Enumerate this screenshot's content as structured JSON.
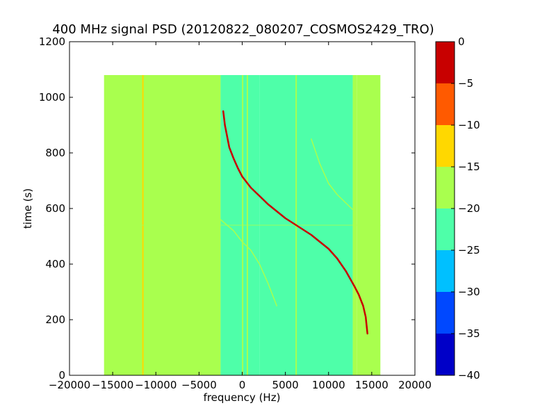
{
  "chart_data": {
    "type": "heatmap",
    "title": "400 MHz signal PSD (20120822_080207_COSMOS2429_TRO)",
    "xlabel": "frequency (Hz)",
    "ylabel": "time (s)",
    "xlim": [
      -20000,
      20000
    ],
    "ylim": [
      0,
      1200
    ],
    "xticks": [
      -20000,
      -15000,
      -10000,
      -5000,
      0,
      5000,
      10000,
      15000,
      20000
    ],
    "yticks": [
      0,
      200,
      400,
      600,
      800,
      1000,
      1200
    ],
    "data_extent": {
      "x": [
        -16000,
        16000
      ],
      "y": [
        0,
        1080
      ]
    },
    "colorbar": {
      "min": -40,
      "max": 0,
      "ticks": [
        0,
        -5,
        -10,
        -15,
        -20,
        -25,
        -30,
        -35,
        -40
      ],
      "levels": [
        {
          "from": -40,
          "to": -35,
          "color": "#0000c8"
        },
        {
          "from": -35,
          "to": -30,
          "color": "#0048ff"
        },
        {
          "from": -30,
          "to": -25,
          "color": "#00c0ff"
        },
        {
          "from": -25,
          "to": -20,
          "color": "#4effa9"
        },
        {
          "from": -20,
          "to": -15,
          "color": "#a9ff4e"
        },
        {
          "from": -15,
          "to": -10,
          "color": "#ffd800"
        },
        {
          "from": -10,
          "to": -5,
          "color": "#ff5a00"
        },
        {
          "from": -5,
          "to": 0,
          "color": "#c80000"
        }
      ]
    },
    "background_regions": [
      {
        "x": [
          -16000,
          -11500
        ],
        "level": -17.5
      },
      {
        "x": [
          -11500,
          -2500
        ],
        "level": -20
      },
      {
        "x": [
          -2500,
          2000
        ],
        "level": -21
      },
      {
        "x": [
          2000,
          12800
        ],
        "level": -22.5
      },
      {
        "x": [
          12800,
          13300
        ],
        "level": -20
      },
      {
        "x": [
          13300,
          16000
        ],
        "level": -17.5
      }
    ],
    "vertical_lines": [
      {
        "x": -11500,
        "y": [
          0,
          1080
        ],
        "level": -12
      },
      {
        "x": -10900,
        "y": [
          0,
          1080
        ],
        "level": -17
      },
      {
        "x": 50,
        "y": [
          0,
          1080
        ],
        "level": -17
      },
      {
        "x": 600,
        "y": [
          0,
          1080
        ],
        "level": -17
      },
      {
        "x": 6250,
        "y": [
          0,
          1080
        ],
        "level": -17
      }
    ],
    "main_signal": {
      "level": -3,
      "x": [
        -2200,
        -2000,
        -1500,
        -1000,
        -500,
        0,
        1000,
        2000,
        3000,
        4000,
        5000,
        6000,
        7000,
        8000,
        9000,
        10000,
        11000,
        12000,
        13000,
        13500,
        14000,
        14300,
        14500
      ],
      "y": [
        950,
        900,
        820,
        780,
        745,
        715,
        675,
        645,
        615,
        590,
        565,
        545,
        525,
        505,
        480,
        455,
        420,
        375,
        320,
        290,
        250,
        210,
        150
      ]
    },
    "faint_traces": [
      {
        "level": -17,
        "x": [
          -2500,
          -1000,
          0,
          1000,
          2000,
          3000,
          4000
        ],
        "y": [
          560,
          520,
          480,
          450,
          400,
          330,
          250
        ]
      },
      {
        "level": -18,
        "x": [
          8000,
          9000,
          10000,
          11000,
          12000,
          13000
        ],
        "y": [
          850,
          760,
          690,
          650,
          620,
          590
        ]
      }
    ],
    "horizontal_streak": {
      "y": 540,
      "x": [
        -16000,
        16000
      ],
      "level": -18
    }
  }
}
